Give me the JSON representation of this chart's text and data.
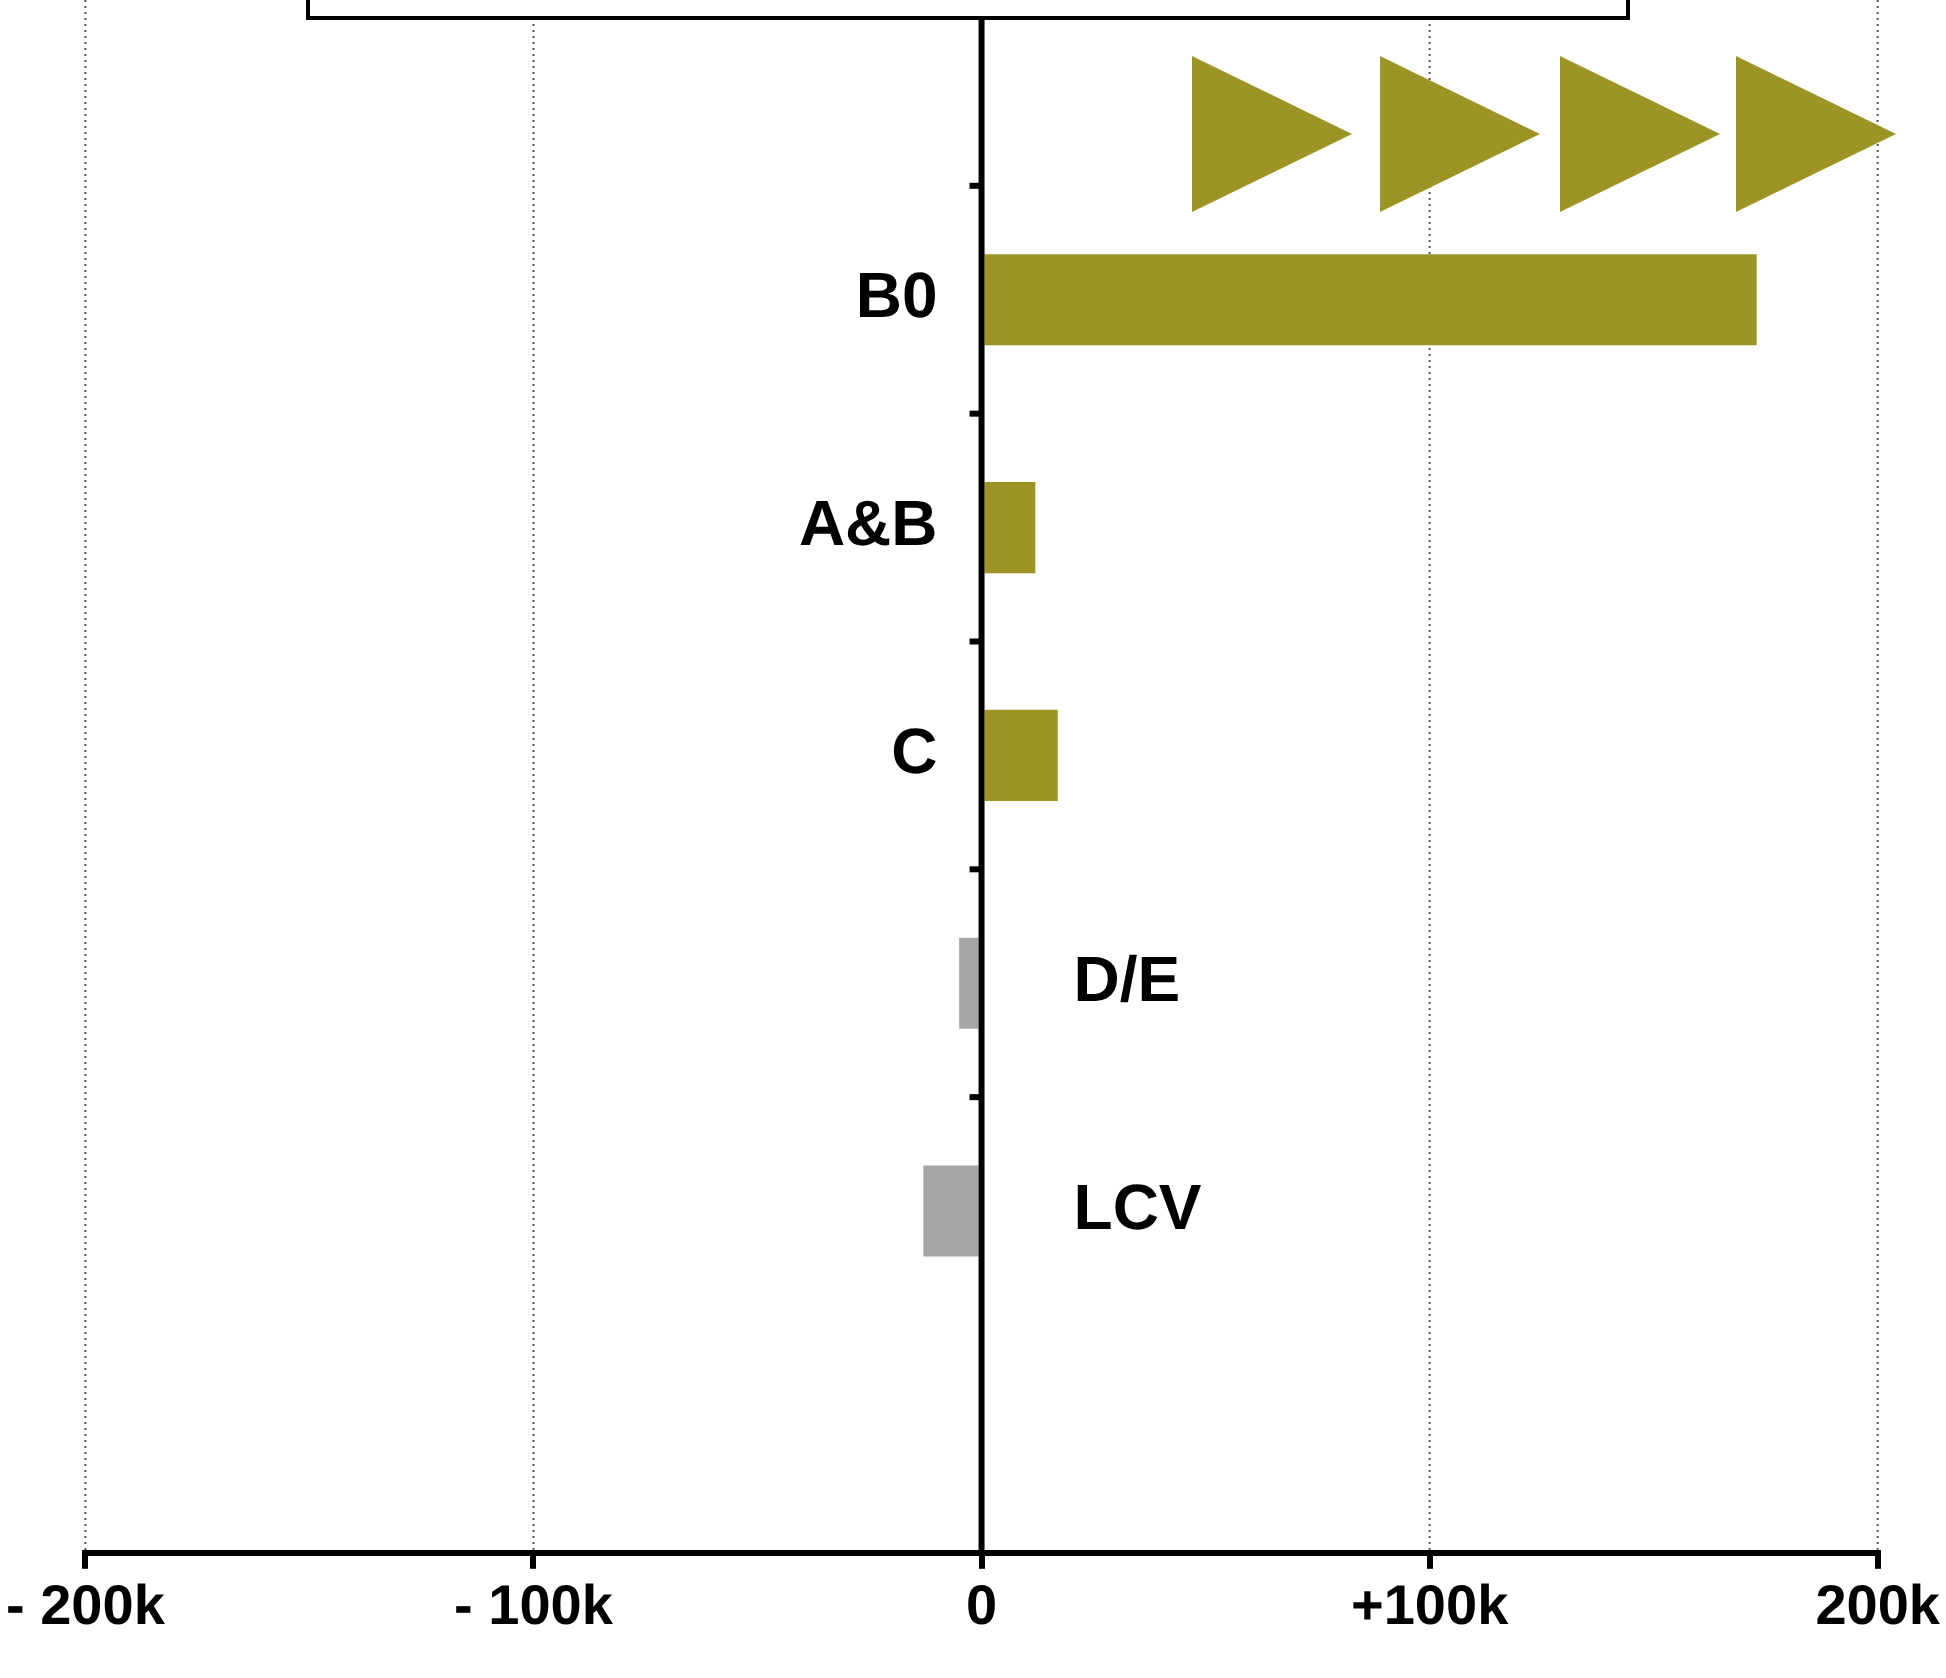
{
  "chart_data": {
    "type": "bar",
    "orientation": "horizontal",
    "categories": [
      null,
      "B0",
      "A&B",
      "C",
      "D/E",
      "LCV",
      null
    ],
    "values": [
      null,
      173000,
      12000,
      17000,
      -5000,
      -13000,
      null
    ],
    "colors": [
      "#9c9424",
      "#9c9424",
      "#9c9424",
      "#9c9424",
      "#a6a6a6",
      "#a6a6a6",
      "#9c9424"
    ],
    "xlim": [
      -200000,
      200000
    ],
    "xticks": [
      {
        "value": -200000,
        "label": "- 200k"
      },
      {
        "value": -100000,
        "label": "- 100k"
      },
      0,
      {
        "value": 100000,
        "label": "+100k"
      },
      {
        "value": 200000,
        "label": "200k"
      }
    ],
    "grid": "x",
    "legend": false
  }
}
